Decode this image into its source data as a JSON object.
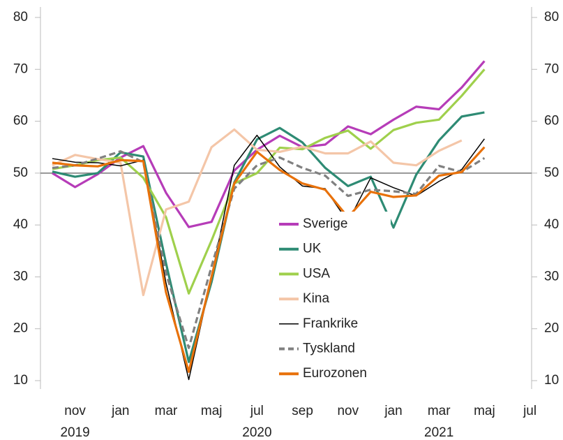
{
  "chart_data": {
    "type": "line",
    "categories": [
      null,
      "nov",
      null,
      "jan",
      null,
      "mar",
      null,
      "maj",
      null,
      "jul",
      null,
      "sep",
      null,
      "nov",
      null,
      "jan",
      null,
      "mar",
      null,
      "maj",
      null,
      "jul"
    ],
    "year_labels": [
      {
        "label": "2019",
        "category": 1
      },
      {
        "label": "2020",
        "category": 9
      },
      {
        "label": "2021",
        "category": 17
      }
    ],
    "ylim": [
      10,
      80
    ],
    "yticks": [
      10,
      20,
      30,
      40,
      50,
      60,
      70,
      80
    ],
    "reference_line": 50,
    "series": [
      {
        "name": "Sverige",
        "color": "#b63cb8",
        "values": [
          50,
          47.3,
          49.8,
          53,
          55.2,
          46.2,
          39.6,
          40.6,
          50.5,
          54.5,
          57.2,
          55,
          55.5,
          59,
          57.5,
          60.3,
          62.8,
          62.3,
          66.5,
          71.6,
          null,
          null
        ]
      },
      {
        "name": "UK",
        "color": "#2e8b74",
        "values": [
          50.3,
          49.3,
          50,
          54,
          53.2,
          32.6,
          13.6,
          29,
          48.2,
          56.5,
          58.7,
          55.9,
          51,
          47.5,
          49.3,
          39.5,
          49.7,
          56.3,
          60.9,
          61.7,
          null,
          null
        ]
      },
      {
        "name": "USA",
        "color": "#9fd04c",
        "values": [
          50.8,
          51.5,
          52.5,
          53,
          49.1,
          41.5,
          26.8,
          37,
          48,
          50,
          54.9,
          54.6,
          56.8,
          58.2,
          54.7,
          58.3,
          59.7,
          60.3,
          64.9,
          70,
          null,
          null
        ]
      },
      {
        "name": "Kina",
        "color": "#f4c6a8",
        "values": [
          51.5,
          53.5,
          52.7,
          52,
          26.5,
          43,
          44.5,
          55,
          58.4,
          54.5,
          54.1,
          55.1,
          53.8,
          53.8,
          56.1,
          52,
          51.5,
          54.3,
          56.3,
          null,
          null,
          null
        ]
      },
      {
        "name": "Frankrike",
        "color": "#000000",
        "width": 1.5,
        "values": [
          52.8,
          52.1,
          52,
          51.4,
          52.5,
          28.8,
          10.2,
          30,
          51.5,
          57.3,
          51.2,
          47.5,
          47,
          40.6,
          49.1,
          47.2,
          45.6,
          48.4,
          50.7,
          56.6,
          null,
          null
        ]
      },
      {
        "name": "Tyskland",
        "color": "#808080",
        "dashed": true,
        "values": [
          51,
          51.5,
          52.8,
          54.2,
          52.1,
          30.7,
          16.3,
          32,
          47,
          51.5,
          53,
          51,
          49.5,
          45.6,
          46.8,
          46.5,
          46,
          51.4,
          50.2,
          52.9,
          null,
          null
        ]
      },
      {
        "name": "Eurozonen",
        "color": "#e8710a",
        "values": [
          52,
          51.5,
          51.3,
          52.5,
          52.3,
          27,
          11.7,
          30,
          48,
          54.1,
          50.6,
          48,
          46.8,
          41.5,
          46.4,
          45.4,
          45.7,
          49.5,
          50.2,
          55,
          null,
          null
        ]
      }
    ]
  }
}
